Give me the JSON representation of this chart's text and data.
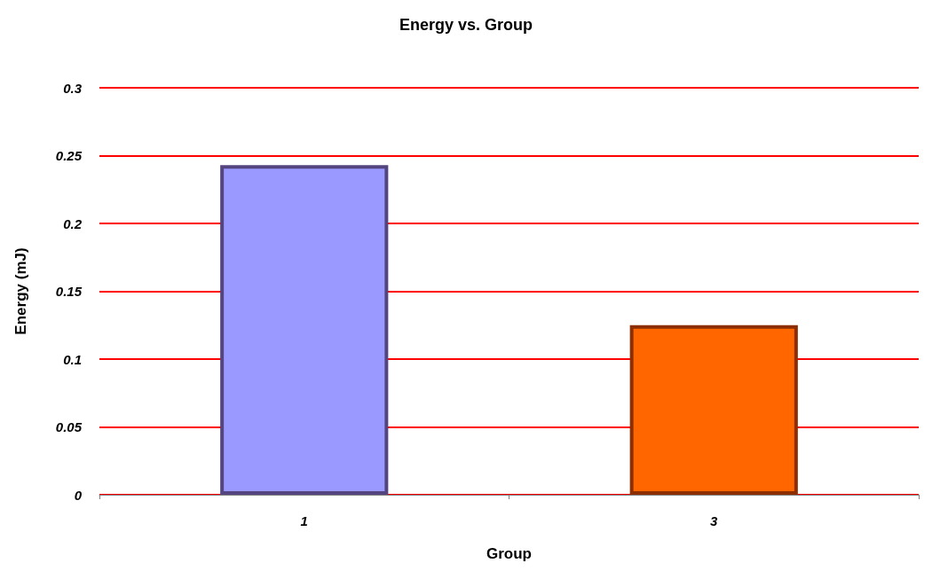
{
  "chart_data": {
    "type": "bar",
    "title": "Energy vs. Group",
    "xlabel": "Group",
    "ylabel": "Energy (mJ)",
    "categories": [
      "1",
      "3"
    ],
    "values": [
      0.243,
      0.125
    ],
    "colors": [
      "#9999ff",
      "#ff6600"
    ],
    "ylim": [
      0,
      0.3
    ],
    "yticks": [
      0,
      0.05,
      0.1,
      0.15,
      0.2,
      0.25,
      0.3
    ],
    "grid": "y"
  }
}
